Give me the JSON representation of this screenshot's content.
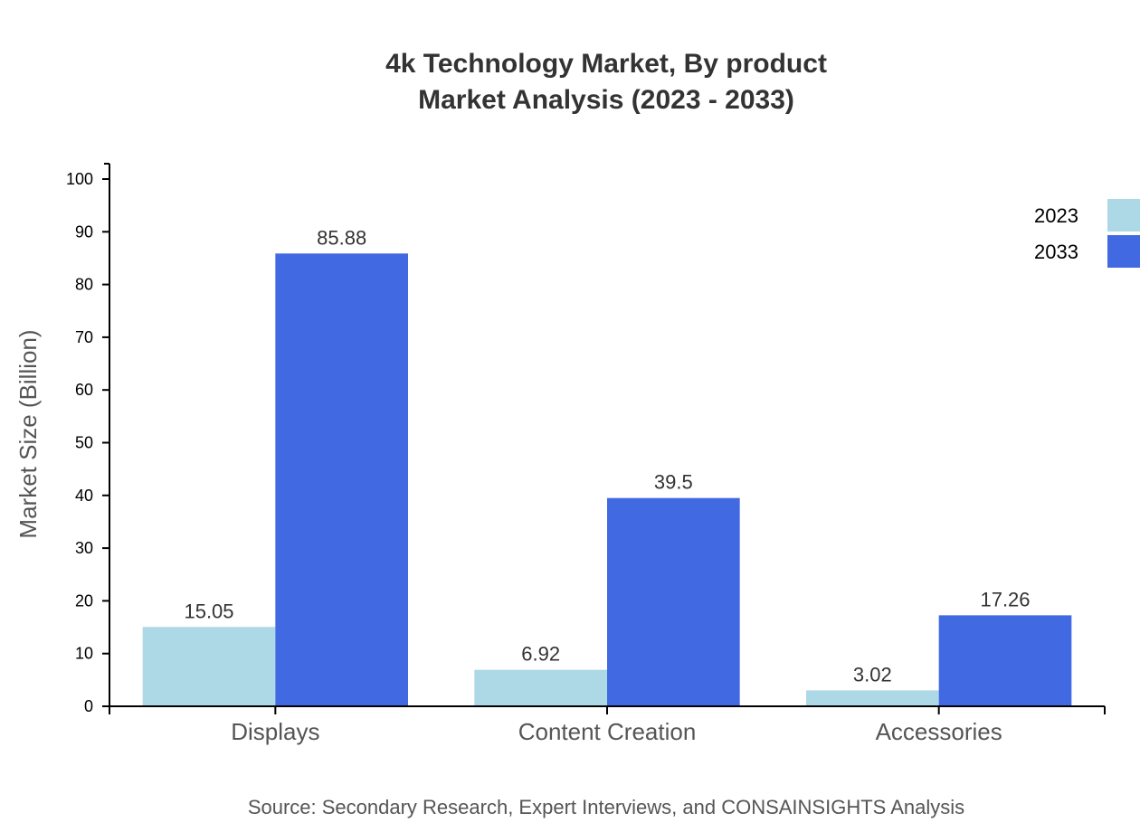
{
  "chart_data": {
    "type": "bar",
    "title": "4k Technology Market, By product",
    "subtitle": "Market Analysis (2023 - 2033)",
    "xlabel": "",
    "ylabel": "Market Size (Billion)",
    "ylim": [
      0,
      100
    ],
    "yticks": [
      0,
      10,
      20,
      30,
      40,
      50,
      60,
      70,
      80,
      90,
      100
    ],
    "categories": [
      "Displays",
      "Content Creation",
      "Accessories"
    ],
    "series": [
      {
        "name": "2023",
        "color": "#ADD8E6",
        "values": [
          15.05,
          6.92,
          3.02
        ]
      },
      {
        "name": "2033",
        "color": "#4169E1",
        "values": [
          85.88,
          39.5,
          17.26
        ]
      }
    ],
    "grid": false,
    "legend": "top-right",
    "source": "Source: Secondary Research, Expert Interviews, and CONSAINSIGHTS Analysis"
  }
}
